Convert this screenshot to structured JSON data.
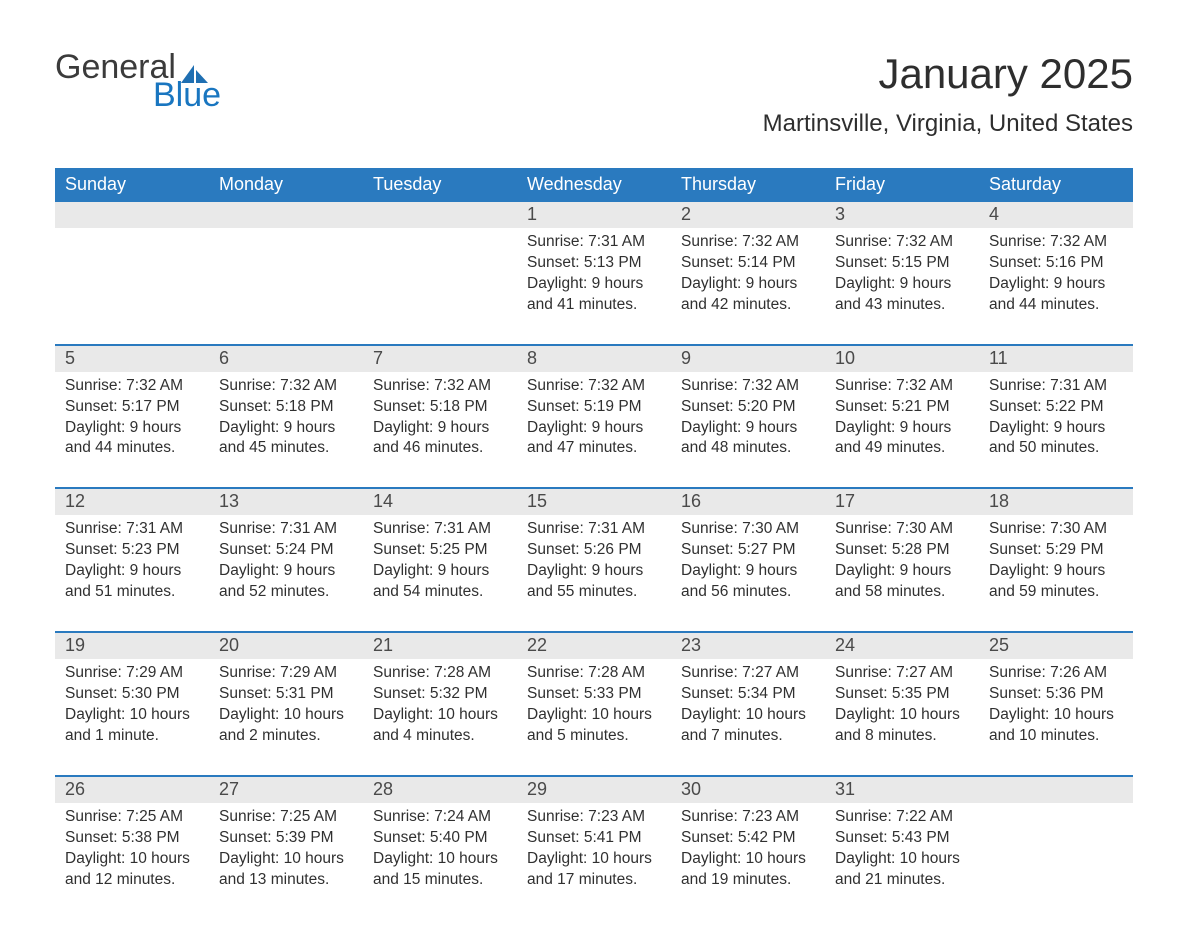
{
  "logo": {
    "word1": "General",
    "word2": "Blue",
    "sail_color": "#1f6fb2"
  },
  "title": "January 2025",
  "location": "Martinsville, Virginia, United States",
  "colors": {
    "header_bg": "#2a7abf",
    "header_text": "#ffffff",
    "daynum_bg": "#e9e9e9",
    "week_divider": "#2a7abf",
    "body_text": "#303030",
    "page_bg": "#ffffff"
  },
  "typography": {
    "title_fontsize": 42,
    "location_fontsize": 24,
    "weekday_fontsize": 18,
    "daynum_fontsize": 18,
    "body_fontsize": 15.5,
    "font_family": "Arial"
  },
  "weekdays": [
    "Sunday",
    "Monday",
    "Tuesday",
    "Wednesday",
    "Thursday",
    "Friday",
    "Saturday"
  ],
  "weeks": [
    [
      null,
      null,
      null,
      {
        "n": "1",
        "sunrise": "Sunrise: 7:31 AM",
        "sunset": "Sunset: 5:13 PM",
        "daylight": "Daylight: 9 hours and 41 minutes."
      },
      {
        "n": "2",
        "sunrise": "Sunrise: 7:32 AM",
        "sunset": "Sunset: 5:14 PM",
        "daylight": "Daylight: 9 hours and 42 minutes."
      },
      {
        "n": "3",
        "sunrise": "Sunrise: 7:32 AM",
        "sunset": "Sunset: 5:15 PM",
        "daylight": "Daylight: 9 hours and 43 minutes."
      },
      {
        "n": "4",
        "sunrise": "Sunrise: 7:32 AM",
        "sunset": "Sunset: 5:16 PM",
        "daylight": "Daylight: 9 hours and 44 minutes."
      }
    ],
    [
      {
        "n": "5",
        "sunrise": "Sunrise: 7:32 AM",
        "sunset": "Sunset: 5:17 PM",
        "daylight": "Daylight: 9 hours and 44 minutes."
      },
      {
        "n": "6",
        "sunrise": "Sunrise: 7:32 AM",
        "sunset": "Sunset: 5:18 PM",
        "daylight": "Daylight: 9 hours and 45 minutes."
      },
      {
        "n": "7",
        "sunrise": "Sunrise: 7:32 AM",
        "sunset": "Sunset: 5:18 PM",
        "daylight": "Daylight: 9 hours and 46 minutes."
      },
      {
        "n": "8",
        "sunrise": "Sunrise: 7:32 AM",
        "sunset": "Sunset: 5:19 PM",
        "daylight": "Daylight: 9 hours and 47 minutes."
      },
      {
        "n": "9",
        "sunrise": "Sunrise: 7:32 AM",
        "sunset": "Sunset: 5:20 PM",
        "daylight": "Daylight: 9 hours and 48 minutes."
      },
      {
        "n": "10",
        "sunrise": "Sunrise: 7:32 AM",
        "sunset": "Sunset: 5:21 PM",
        "daylight": "Daylight: 9 hours and 49 minutes."
      },
      {
        "n": "11",
        "sunrise": "Sunrise: 7:31 AM",
        "sunset": "Sunset: 5:22 PM",
        "daylight": "Daylight: 9 hours and 50 minutes."
      }
    ],
    [
      {
        "n": "12",
        "sunrise": "Sunrise: 7:31 AM",
        "sunset": "Sunset: 5:23 PM",
        "daylight": "Daylight: 9 hours and 51 minutes."
      },
      {
        "n": "13",
        "sunrise": "Sunrise: 7:31 AM",
        "sunset": "Sunset: 5:24 PM",
        "daylight": "Daylight: 9 hours and 52 minutes."
      },
      {
        "n": "14",
        "sunrise": "Sunrise: 7:31 AM",
        "sunset": "Sunset: 5:25 PM",
        "daylight": "Daylight: 9 hours and 54 minutes."
      },
      {
        "n": "15",
        "sunrise": "Sunrise: 7:31 AM",
        "sunset": "Sunset: 5:26 PM",
        "daylight": "Daylight: 9 hours and 55 minutes."
      },
      {
        "n": "16",
        "sunrise": "Sunrise: 7:30 AM",
        "sunset": "Sunset: 5:27 PM",
        "daylight": "Daylight: 9 hours and 56 minutes."
      },
      {
        "n": "17",
        "sunrise": "Sunrise: 7:30 AM",
        "sunset": "Sunset: 5:28 PM",
        "daylight": "Daylight: 9 hours and 58 minutes."
      },
      {
        "n": "18",
        "sunrise": "Sunrise: 7:30 AM",
        "sunset": "Sunset: 5:29 PM",
        "daylight": "Daylight: 9 hours and 59 minutes."
      }
    ],
    [
      {
        "n": "19",
        "sunrise": "Sunrise: 7:29 AM",
        "sunset": "Sunset: 5:30 PM",
        "daylight": "Daylight: 10 hours and 1 minute."
      },
      {
        "n": "20",
        "sunrise": "Sunrise: 7:29 AM",
        "sunset": "Sunset: 5:31 PM",
        "daylight": "Daylight: 10 hours and 2 minutes."
      },
      {
        "n": "21",
        "sunrise": "Sunrise: 7:28 AM",
        "sunset": "Sunset: 5:32 PM",
        "daylight": "Daylight: 10 hours and 4 minutes."
      },
      {
        "n": "22",
        "sunrise": "Sunrise: 7:28 AM",
        "sunset": "Sunset: 5:33 PM",
        "daylight": "Daylight: 10 hours and 5 minutes."
      },
      {
        "n": "23",
        "sunrise": "Sunrise: 7:27 AM",
        "sunset": "Sunset: 5:34 PM",
        "daylight": "Daylight: 10 hours and 7 minutes."
      },
      {
        "n": "24",
        "sunrise": "Sunrise: 7:27 AM",
        "sunset": "Sunset: 5:35 PM",
        "daylight": "Daylight: 10 hours and 8 minutes."
      },
      {
        "n": "25",
        "sunrise": "Sunrise: 7:26 AM",
        "sunset": "Sunset: 5:36 PM",
        "daylight": "Daylight: 10 hours and 10 minutes."
      }
    ],
    [
      {
        "n": "26",
        "sunrise": "Sunrise: 7:25 AM",
        "sunset": "Sunset: 5:38 PM",
        "daylight": "Daylight: 10 hours and 12 minutes."
      },
      {
        "n": "27",
        "sunrise": "Sunrise: 7:25 AM",
        "sunset": "Sunset: 5:39 PM",
        "daylight": "Daylight: 10 hours and 13 minutes."
      },
      {
        "n": "28",
        "sunrise": "Sunrise: 7:24 AM",
        "sunset": "Sunset: 5:40 PM",
        "daylight": "Daylight: 10 hours and 15 minutes."
      },
      {
        "n": "29",
        "sunrise": "Sunrise: 7:23 AM",
        "sunset": "Sunset: 5:41 PM",
        "daylight": "Daylight: 10 hours and 17 minutes."
      },
      {
        "n": "30",
        "sunrise": "Sunrise: 7:23 AM",
        "sunset": "Sunset: 5:42 PM",
        "daylight": "Daylight: 10 hours and 19 minutes."
      },
      {
        "n": "31",
        "sunrise": "Sunrise: 7:22 AM",
        "sunset": "Sunset: 5:43 PM",
        "daylight": "Daylight: 10 hours and 21 minutes."
      },
      null
    ]
  ]
}
